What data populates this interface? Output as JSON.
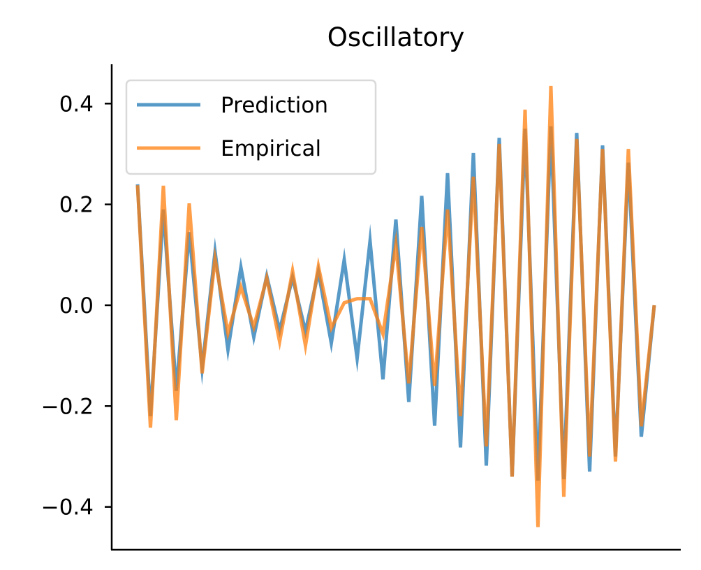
{
  "chart_data": {
    "type": "line",
    "title": "Oscillatory",
    "xlabel": "",
    "ylabel": "",
    "x_ticks_visible": false,
    "ylim": [
      -0.485,
      0.478
    ],
    "yticks": [
      0.4,
      0.2,
      0.0,
      -0.2,
      -0.4
    ],
    "ytick_labels": [
      "0.4",
      "0.2",
      "0.0",
      "−0.2",
      "−0.4"
    ],
    "grid": false,
    "legend": {
      "location": "upper-left"
    },
    "x": [
      0,
      1,
      2,
      3,
      4,
      5,
      6,
      7,
      8,
      9,
      10,
      11,
      12,
      13,
      14,
      15,
      16,
      17,
      18,
      19,
      20,
      21,
      22,
      23,
      24,
      25,
      26,
      27,
      28,
      29,
      30,
      31,
      32,
      33,
      34,
      35,
      36,
      37,
      38,
      39,
      40
    ],
    "series": [
      {
        "name": "Prediction",
        "color": "#1f77b4",
        "values": [
          0.24,
          -0.22,
          0.19,
          -0.17,
          0.145,
          -0.125,
          0.106,
          -0.088,
          0.075,
          -0.063,
          0.058,
          -0.05,
          0.055,
          -0.052,
          0.066,
          -0.075,
          0.09,
          -0.105,
          0.127,
          -0.147,
          0.17,
          -0.192,
          0.217,
          -0.239,
          0.262,
          -0.282,
          0.302,
          -0.318,
          0.332,
          -0.34,
          0.35,
          -0.348,
          0.355,
          -0.345,
          0.342,
          -0.33,
          0.317,
          -0.3,
          0.283,
          -0.261,
          0.0
        ]
      },
      {
        "name": "Empirical",
        "color": "#ff7f0e",
        "values": [
          0.238,
          -0.243,
          0.237,
          -0.228,
          0.202,
          -0.135,
          0.092,
          -0.055,
          0.036,
          -0.043,
          0.054,
          -0.072,
          0.068,
          -0.08,
          0.077,
          -0.045,
          0.005,
          0.013,
          0.013,
          -0.057,
          0.12,
          -0.155,
          0.155,
          -0.16,
          0.19,
          -0.22,
          0.255,
          -0.28,
          0.32,
          -0.34,
          0.388,
          -0.44,
          0.435,
          -0.38,
          0.33,
          -0.3,
          0.31,
          -0.31,
          0.31,
          -0.24,
          0.0
        ]
      }
    ]
  }
}
